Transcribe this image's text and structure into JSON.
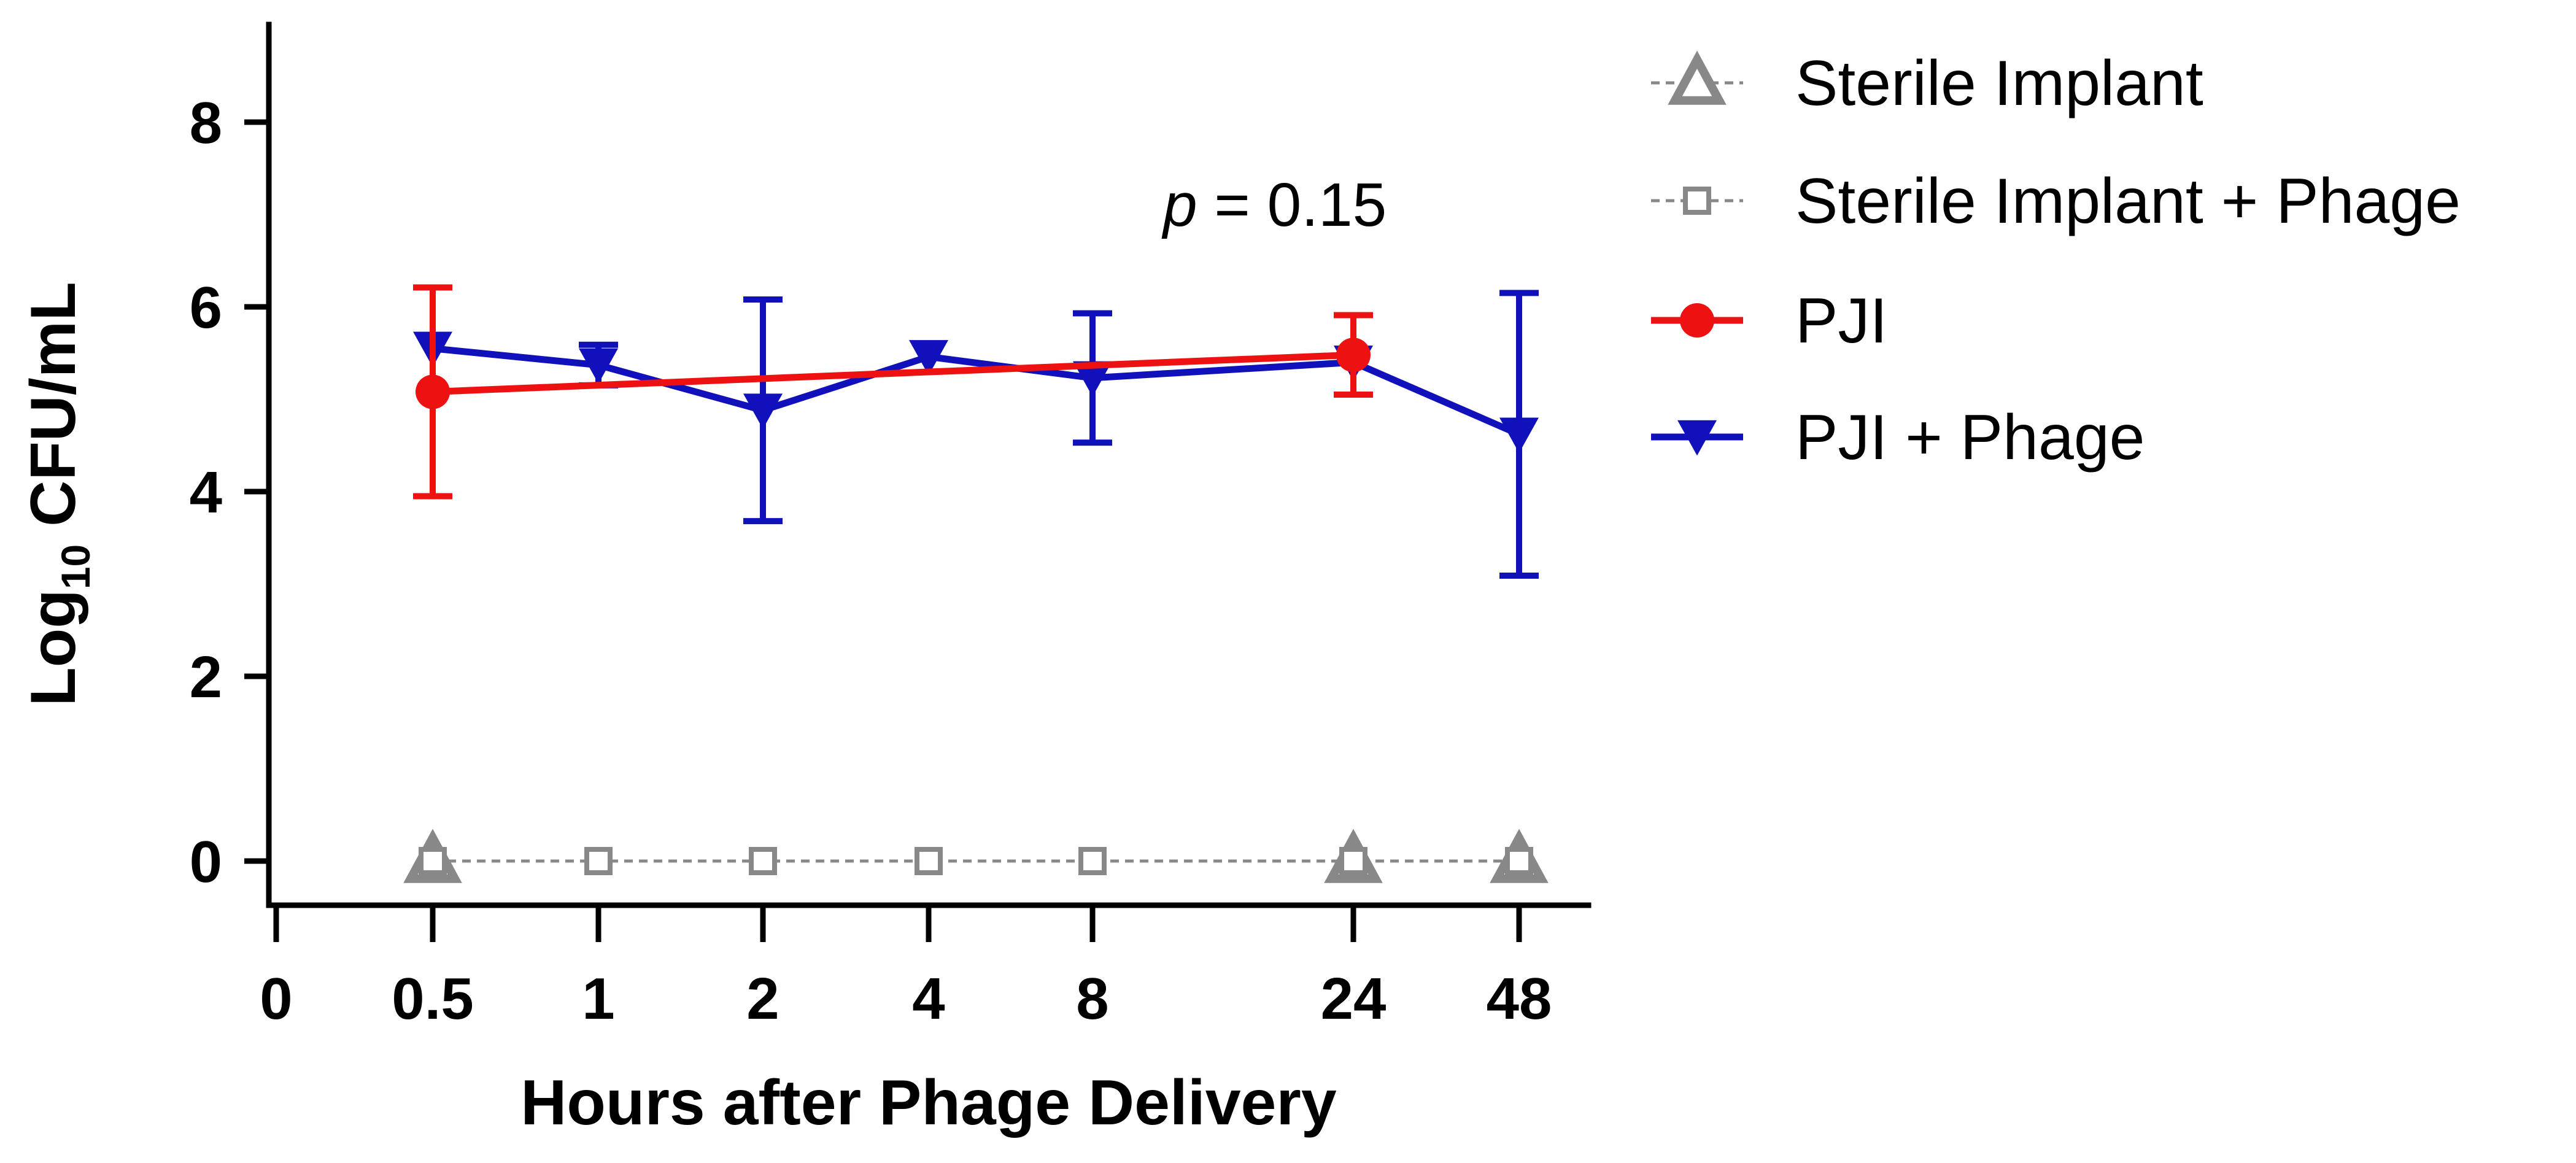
{
  "chart_data": {
    "type": "line",
    "title": "",
    "xlabel": "Hours after Phage Delivery",
    "ylabel_main": "Log",
    "ylabel_sub": "10",
    "ylabel_rest": " CFU/mL",
    "x_tick_labels": [
      "0",
      "0.5",
      "1",
      "2",
      "4",
      "8",
      "24",
      "48"
    ],
    "y_ticks": [
      0,
      2,
      4,
      6,
      8
    ],
    "ylim": [
      -0.5,
      9
    ],
    "annotation": {
      "p_symbol": "p",
      "p_text": " = 0.15"
    },
    "series": [
      {
        "name": "Sterile Implant",
        "color": "#888888",
        "marker": "triangle-up-open",
        "line": "dashed",
        "x": [
          "0.5",
          "24",
          "48"
        ],
        "values": [
          0,
          0,
          0
        ],
        "err": [
          0,
          0,
          0
        ]
      },
      {
        "name": "Sterile Implant + Phage",
        "color": "#888888",
        "marker": "square-open",
        "line": "dashed",
        "x": [
          "0.5",
          "1",
          "2",
          "4",
          "8",
          "24",
          "48"
        ],
        "values": [
          0,
          0,
          0,
          0,
          0,
          0,
          0
        ],
        "err": [
          0,
          0,
          0,
          0,
          0,
          0,
          0
        ]
      },
      {
        "name": "PJI",
        "color": "#ee1111",
        "marker": "circle",
        "line": "solid",
        "x": [
          "0.5",
          "24"
        ],
        "values": [
          5.08,
          5.48
        ],
        "err": [
          1.13,
          0.43
        ]
      },
      {
        "name": "PJI + Phage",
        "color": "#1111bb",
        "marker": "triangle-down",
        "line": "solid",
        "x": [
          "0.5",
          "1",
          "2",
          "4",
          "8",
          "24",
          "48"
        ],
        "values": [
          5.55,
          5.37,
          4.88,
          5.46,
          5.23,
          5.4,
          4.62
        ],
        "err": [
          0,
          0.22,
          1.2,
          0,
          0.7,
          0,
          1.53
        ]
      }
    ],
    "legend_position": "right"
  }
}
